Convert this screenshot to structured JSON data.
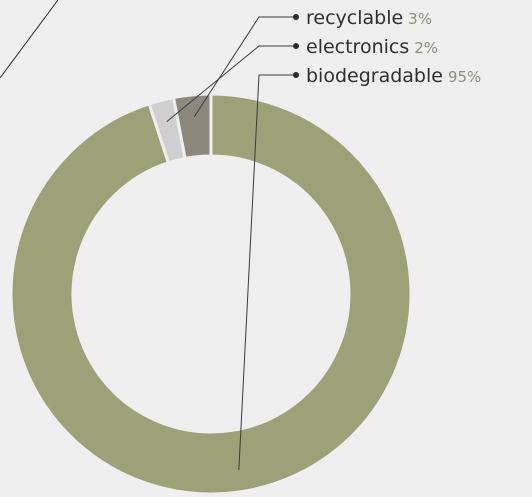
{
  "chart_data": {
    "type": "pie",
    "variant": "donut",
    "title": "",
    "categories": [
      "biodegradable",
      "electronics",
      "recyclable"
    ],
    "values": [
      95,
      2,
      3
    ],
    "value_labels": [
      "95%",
      "2%",
      "3%"
    ],
    "unit": "%",
    "start_angle_deg": 0,
    "direction": "clockwise",
    "colors": [
      "#9ca178",
      "#cfcfcf",
      "#8d887c"
    ],
    "legend_order": [
      2,
      1,
      0
    ],
    "legend_placement": "top-right",
    "legend_style": "leader-lines",
    "leader_color": "#3b3b3b",
    "slice_separator_color": "#efefef"
  }
}
